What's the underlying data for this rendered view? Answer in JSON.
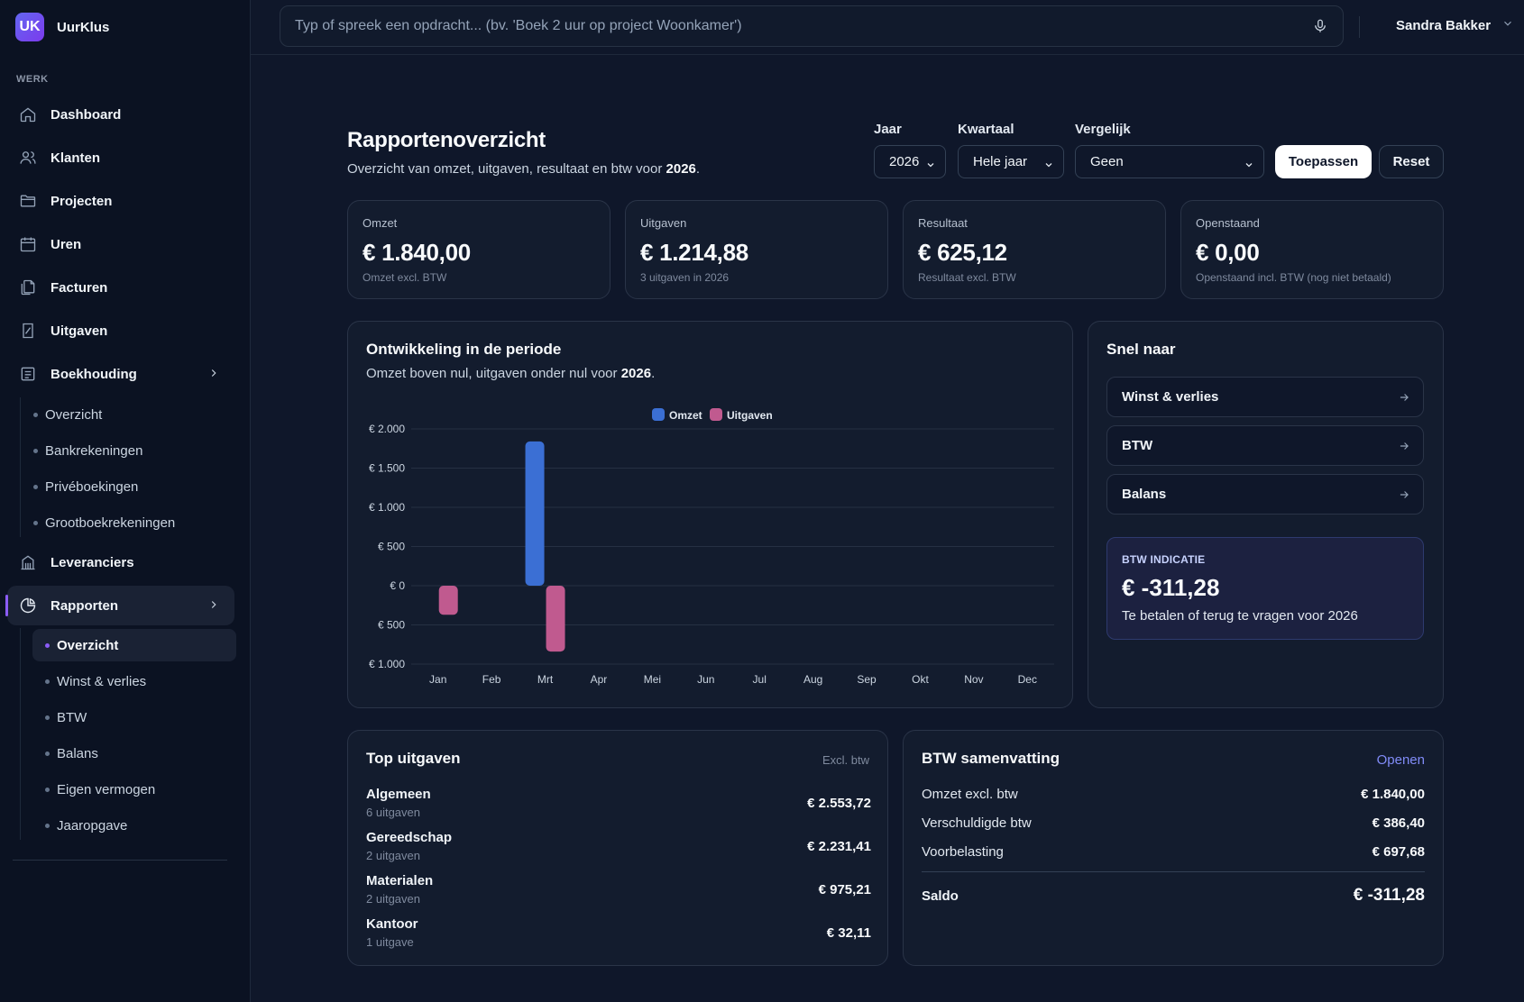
{
  "app": {
    "name": "UurKlus",
    "logo": "UK"
  },
  "sidebar": {
    "section_label": "WERK",
    "items": {
      "dashboard": "Dashboard",
      "klanten": "Klanten",
      "projecten": "Projecten",
      "uren": "Uren",
      "facturen": "Facturen",
      "uitgaven": "Uitgaven",
      "boekhouding": "Boekhouding",
      "leveranciers": "Leveranciers",
      "rapporten": "Rapporten"
    },
    "boekhouding_sub": [
      "Overzicht",
      "Bankrekeningen",
      "Privéboekingen",
      "Grootboekrekeningen"
    ],
    "rapporten_sub": [
      "Overzicht",
      "Winst & verlies",
      "BTW",
      "Balans",
      "Eigen vermogen",
      "Jaaropgave"
    ]
  },
  "topbar": {
    "command_placeholder": "Typ of spreek een opdracht... (bv. 'Boek 2 uur op project Woonkamer')",
    "user_name": "Sandra Bakker"
  },
  "header": {
    "title": "Rapportenoverzicht",
    "subtitle_prefix": "Overzicht van omzet, uitgaven, resultaat en btw voor",
    "year": "2026",
    "subtitle_suffix": "."
  },
  "filters": {
    "jaar_label": "Jaar",
    "jaar_value": "2026",
    "kwartaal_label": "Kwartaal",
    "kwartaal_value": "Hele jaar",
    "vergelijk_label": "Vergelijk",
    "vergelijk_value": "Geen",
    "apply": "Toepassen",
    "reset": "Reset"
  },
  "stats": [
    {
      "label": "Omzet",
      "value": "€ 1.840,00",
      "note": "Omzet excl. BTW"
    },
    {
      "label": "Uitgaven",
      "value": "€ 1.214,88",
      "note": "3 uitgaven in 2026"
    },
    {
      "label": "Resultaat",
      "value": "€ 625,12",
      "note": "Resultaat excl. BTW"
    },
    {
      "label": "Openstaand",
      "value": "€ 0,00",
      "note": "Openstaand incl. BTW (nog niet betaald)"
    }
  ],
  "chart_card": {
    "title": "Ontwikkeling in de periode",
    "subtitle_prefix": "Omzet boven nul, uitgaven onder nul voor",
    "year": "2026",
    "subtitle_suffix": "."
  },
  "chart_data": {
    "type": "bar",
    "categories": [
      "Jan",
      "Feb",
      "Mrt",
      "Apr",
      "Mei",
      "Jun",
      "Jul",
      "Aug",
      "Sep",
      "Okt",
      "Nov",
      "Dec"
    ],
    "series": [
      {
        "name": "Omzet",
        "values": [
          0,
          0,
          1840,
          0,
          0,
          0,
          0,
          0,
          0,
          0,
          0,
          0
        ],
        "color": "#3b6fd4"
      },
      {
        "name": "Uitgaven",
        "values": [
          -370,
          0,
          -840,
          0,
          0,
          0,
          0,
          0,
          0,
          0,
          0,
          0
        ],
        "color": "#c05a8f"
      }
    ],
    "y_ticks": [
      {
        "value": 2000,
        "label": "€ 2.000"
      },
      {
        "value": 1500,
        "label": "€ 1.500"
      },
      {
        "value": 1000,
        "label": "€ 1.000"
      },
      {
        "value": 500,
        "label": "€ 500"
      },
      {
        "value": 0,
        "label": "€ 0"
      },
      {
        "value": -500,
        "label": "€ 500"
      },
      {
        "value": -1000,
        "label": "€ 1.000"
      }
    ],
    "ylim": [
      -1000,
      2000
    ],
    "grid": true,
    "legend_position": "top-center"
  },
  "quick": {
    "title": "Snel naar",
    "links": [
      "Winst & verlies",
      "BTW",
      "Balans"
    ],
    "btw_label": "BTW INDICATIE",
    "btw_value": "€ -311,28",
    "btw_note": "Te betalen of terug te vragen voor 2026"
  },
  "top_expenses": {
    "title": "Top uitgaven",
    "tag": "Excl. btw",
    "rows": [
      {
        "name": "Algemeen",
        "count": "6 uitgaven",
        "amount": "€ 2.553,72"
      },
      {
        "name": "Gereedschap",
        "count": "2 uitgaven",
        "amount": "€ 2.231,41"
      },
      {
        "name": "Materialen",
        "count": "2 uitgaven",
        "amount": "€ 975,21"
      },
      {
        "name": "Kantoor",
        "count": "1 uitgave",
        "amount": "€ 32,11"
      }
    ]
  },
  "btw_summary": {
    "title": "BTW samenvatting",
    "link": "Openen",
    "rows": [
      {
        "k": "Omzet excl. btw",
        "v": "€ 1.840,00"
      },
      {
        "k": "Verschuldigde btw",
        "v": "€ 386,40"
      },
      {
        "k": "Voorbelasting",
        "v": "€ 697,68"
      }
    ],
    "saldo_label": "Saldo",
    "saldo_value": "€ -311,28"
  },
  "colors": {
    "accent": "#8b5cf6",
    "link": "#818cf8",
    "omzet": "#3b6fd4",
    "uitgaven": "#c05a8f"
  }
}
